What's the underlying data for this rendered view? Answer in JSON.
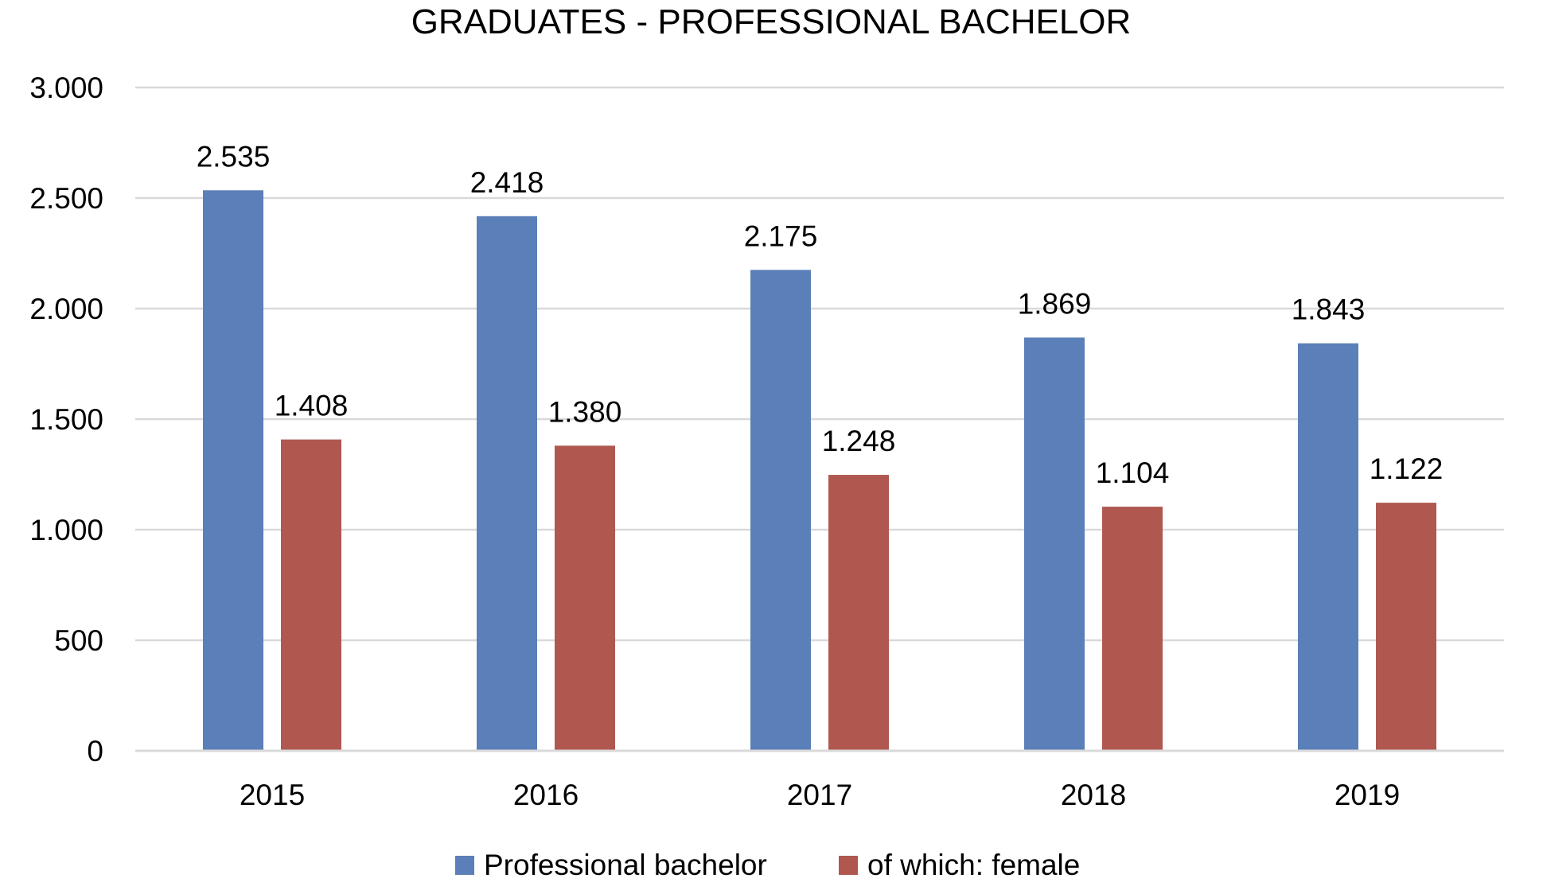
{
  "chart_data": {
    "type": "bar",
    "title": "GRADUATES - PROFESSIONAL BACHELOR",
    "categories": [
      "2015",
      "2016",
      "2017",
      "2018",
      "2019"
    ],
    "series": [
      {
        "name": "Professional bachelor",
        "color": "#5b7fb8",
        "values": [
          2535,
          2418,
          2175,
          1869,
          1843
        ],
        "labels": [
          "2.535",
          "2.418",
          "2.175",
          "1.869",
          "1.843"
        ]
      },
      {
        "name": "of which: female",
        "color": "#b05850",
        "values": [
          1408,
          1380,
          1248,
          1104,
          1122
        ],
        "labels": [
          "1.408",
          "1.380",
          "1.248",
          "1.104",
          "1.122"
        ]
      }
    ],
    "yticks": [
      0,
      500,
      1000,
      1500,
      2000,
      2500,
      3000
    ],
    "ytick_labels": [
      "0",
      "500",
      "1.000",
      "1.500",
      "2.000",
      "2.500",
      "3.000"
    ],
    "ylim": [
      0,
      3000
    ],
    "grid": true,
    "legend_position": "bottom"
  }
}
